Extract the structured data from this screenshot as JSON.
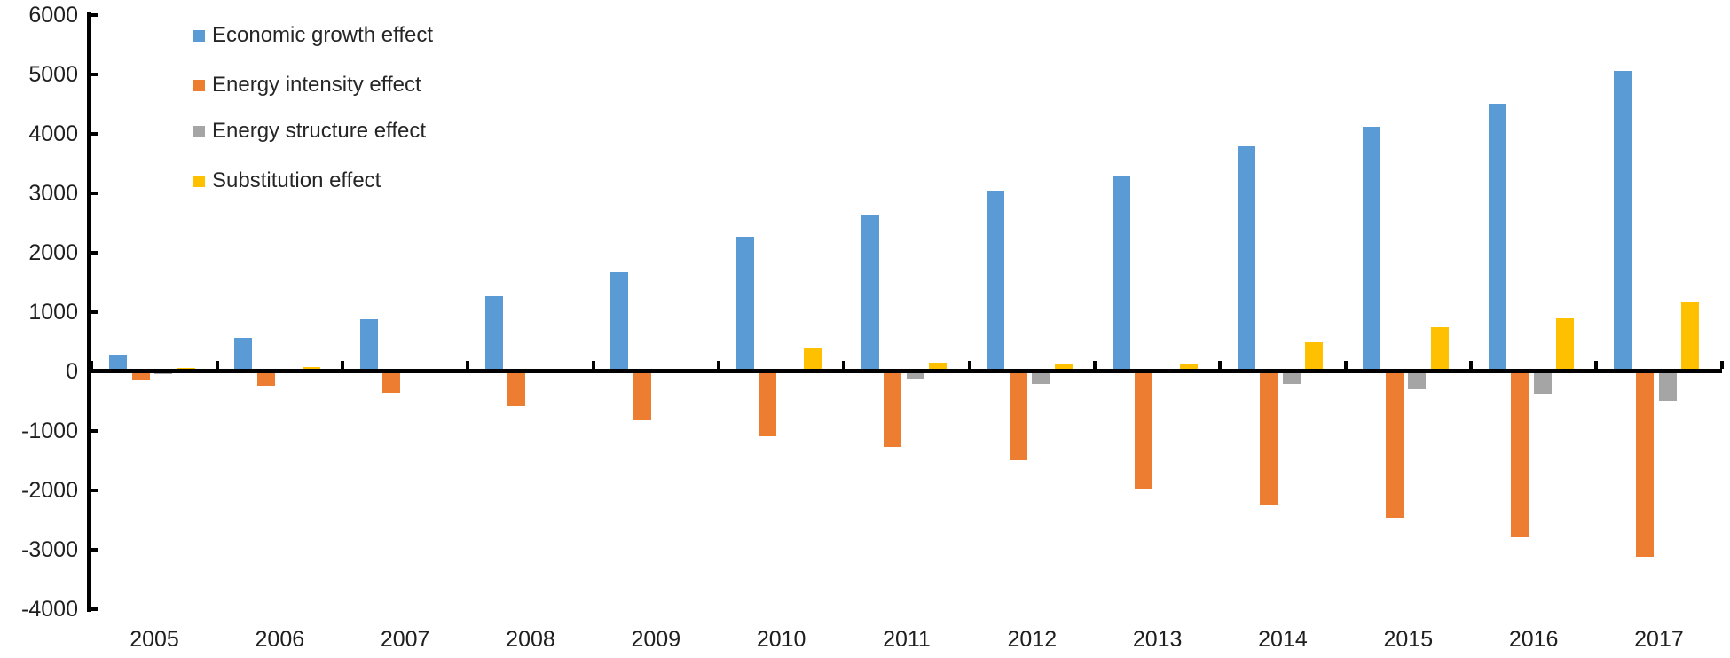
{
  "chart_data": {
    "type": "bar",
    "categories": [
      "2005",
      "2006",
      "2007",
      "2008",
      "2009",
      "2010",
      "2011",
      "2012",
      "2013",
      "2014",
      "2015",
      "2016",
      "2017"
    ],
    "series": [
      {
        "name": "Economic growth effect",
        "color": "#5B9BD5",
        "values": [
          280,
          560,
          880,
          1260,
          1660,
          2260,
          2630,
          3040,
          3300,
          3780,
          4110,
          4510,
          5060
        ]
      },
      {
        "name": "Energy intensity effect",
        "color": "#ED7D31",
        "values": [
          -140,
          -250,
          -360,
          -590,
          -830,
          -1090,
          -1270,
          -1500,
          -1970,
          -2240,
          -2460,
          -2780,
          -3130
        ]
      },
      {
        "name": "Energy structure effect",
        "color": "#A5A5A5",
        "values": [
          -50,
          -25,
          -25,
          -30,
          30,
          -25,
          -130,
          -215,
          -20,
          -220,
          -300,
          -380,
          -500
        ]
      },
      {
        "name": "Substitution effect",
        "color": "#FFC000",
        "values": [
          50,
          70,
          45,
          25,
          30,
          400,
          150,
          130,
          130,
          490,
          740,
          890,
          1160
        ]
      }
    ],
    "ylim": [
      -4000,
      6000
    ],
    "y_ticks": [
      6000,
      5000,
      4000,
      3000,
      2000,
      1000,
      0,
      -1000,
      -2000,
      -3000,
      -4000
    ],
    "grid": false,
    "legend_position": "top-left-inside",
    "axis_color": "#000000",
    "text_color": "#1f1f1f"
  }
}
